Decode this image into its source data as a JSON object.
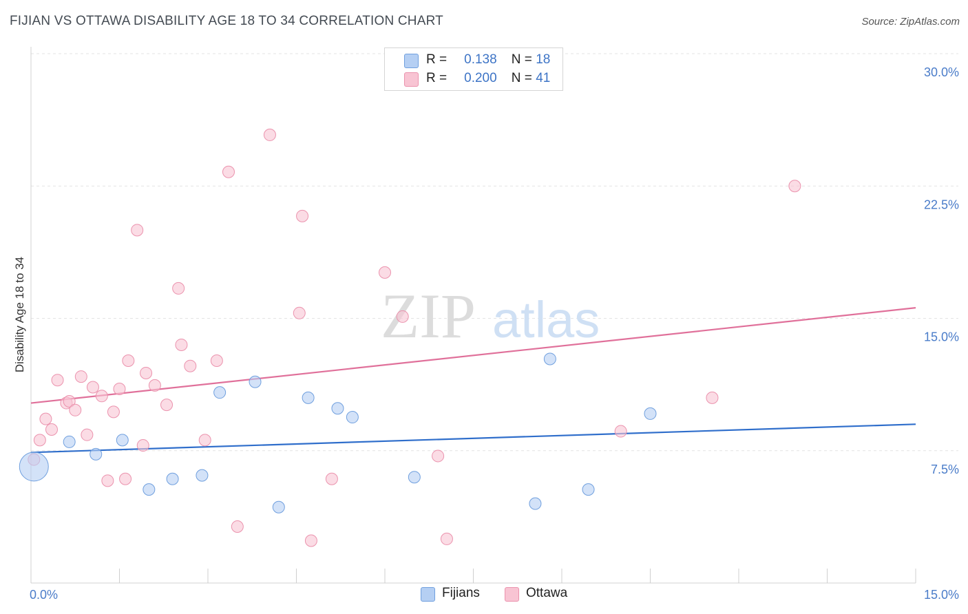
{
  "header": {
    "title": "FIJIAN VS OTTAWA DISABILITY AGE 18 TO 34 CORRELATION CHART",
    "source": "Source: ZipAtlas.com"
  },
  "watermark": {
    "zip": "ZIP",
    "atlas": "atlas"
  },
  "legend": {
    "rows": [
      {
        "r_label": "R =",
        "r_value": "0.138",
        "n_label": "N =",
        "n_value": "18",
        "color": "#b5cff3"
      },
      {
        "r_label": "R =",
        "r_value": "0.200",
        "n_label": "N =",
        "n_value": "41",
        "color": "#f8c4d3"
      }
    ]
  },
  "bottom_legend": [
    {
      "label": "Fijians",
      "color": "#b5cff3"
    },
    {
      "label": "Ottawa",
      "color": "#f8c4d3"
    }
  ],
  "chart_data": {
    "type": "scatter",
    "title": "FIJIAN VS OTTAWA DISABILITY AGE 18 TO 34 CORRELATION CHART",
    "ylabel": "Disability Age 18 to 34",
    "xlabel": "",
    "xlim": [
      0,
      15
    ],
    "ylim": [
      0,
      30
    ],
    "x_tick_labels": [
      {
        "value": 0,
        "label": "0.0%"
      },
      {
        "value": 15,
        "label": "15.0%"
      }
    ],
    "y_tick_labels": [
      {
        "value": 7.5,
        "label": "7.5%"
      },
      {
        "value": 15,
        "label": "15.0%"
      },
      {
        "value": 22.5,
        "label": "22.5%"
      },
      {
        "value": 30,
        "label": "30.0%"
      }
    ],
    "grid": true,
    "legend_position": "top-center",
    "series": [
      {
        "name": "Fijians",
        "color": "#b5cff3",
        "edge_color": "#6f9fde",
        "trend_color": "#2f6ecb",
        "trend": {
          "x": [
            0,
            15
          ],
          "y": [
            7.4,
            9.0
          ]
        },
        "points": [
          {
            "x": 0.05,
            "y": 6.6,
            "big": true
          },
          {
            "x": 0.65,
            "y": 8.0
          },
          {
            "x": 1.1,
            "y": 7.3
          },
          {
            "x": 1.55,
            "y": 8.1
          },
          {
            "x": 2.0,
            "y": 5.3
          },
          {
            "x": 2.4,
            "y": 5.9
          },
          {
            "x": 2.9,
            "y": 6.1
          },
          {
            "x": 3.2,
            "y": 10.8
          },
          {
            "x": 3.8,
            "y": 11.4
          },
          {
            "x": 4.2,
            "y": 4.3
          },
          {
            "x": 4.7,
            "y": 10.5
          },
          {
            "x": 5.2,
            "y": 9.9
          },
          {
            "x": 5.45,
            "y": 9.4
          },
          {
            "x": 6.5,
            "y": 6.0
          },
          {
            "x": 8.8,
            "y": 12.7
          },
          {
            "x": 8.55,
            "y": 4.5
          },
          {
            "x": 9.45,
            "y": 5.3
          },
          {
            "x": 10.5,
            "y": 9.6
          }
        ]
      },
      {
        "name": "Ottawa",
        "color": "#f8c4d3",
        "edge_color": "#eb92ad",
        "trend_color": "#e0709a",
        "trend": {
          "x": [
            0,
            15
          ],
          "y": [
            10.2,
            15.6
          ]
        },
        "points": [
          {
            "x": 0.05,
            "y": 7.0
          },
          {
            "x": 0.15,
            "y": 8.1
          },
          {
            "x": 0.25,
            "y": 9.3
          },
          {
            "x": 0.35,
            "y": 8.7
          },
          {
            "x": 0.45,
            "y": 11.5
          },
          {
            "x": 0.6,
            "y": 10.2
          },
          {
            "x": 0.65,
            "y": 10.3
          },
          {
            "x": 0.75,
            "y": 9.8
          },
          {
            "x": 0.85,
            "y": 11.7
          },
          {
            "x": 0.95,
            "y": 8.4
          },
          {
            "x": 1.05,
            "y": 11.1
          },
          {
            "x": 1.2,
            "y": 10.6
          },
          {
            "x": 1.3,
            "y": 5.8
          },
          {
            "x": 1.4,
            "y": 9.7
          },
          {
            "x": 1.5,
            "y": 11.0
          },
          {
            "x": 1.6,
            "y": 5.9
          },
          {
            "x": 1.65,
            "y": 12.6
          },
          {
            "x": 1.8,
            "y": 20.0
          },
          {
            "x": 1.9,
            "y": 7.8
          },
          {
            "x": 1.95,
            "y": 11.9
          },
          {
            "x": 2.1,
            "y": 11.2
          },
          {
            "x": 2.3,
            "y": 10.1
          },
          {
            "x": 2.5,
            "y": 16.7
          },
          {
            "x": 2.55,
            "y": 13.5
          },
          {
            "x": 2.7,
            "y": 12.3
          },
          {
            "x": 2.95,
            "y": 8.1
          },
          {
            "x": 3.15,
            "y": 12.6
          },
          {
            "x": 3.35,
            "y": 23.3
          },
          {
            "x": 3.5,
            "y": 3.2
          },
          {
            "x": 4.05,
            "y": 25.4
          },
          {
            "x": 4.55,
            "y": 15.3
          },
          {
            "x": 4.6,
            "y": 20.8
          },
          {
            "x": 4.75,
            "y": 2.4
          },
          {
            "x": 5.1,
            "y": 5.9
          },
          {
            "x": 6.0,
            "y": 17.6
          },
          {
            "x": 6.3,
            "y": 15.1
          },
          {
            "x": 6.9,
            "y": 7.2
          },
          {
            "x": 7.05,
            "y": 2.5
          },
          {
            "x": 10.0,
            "y": 8.6
          },
          {
            "x": 11.55,
            "y": 10.5
          },
          {
            "x": 12.95,
            "y": 22.5
          }
        ]
      }
    ]
  }
}
